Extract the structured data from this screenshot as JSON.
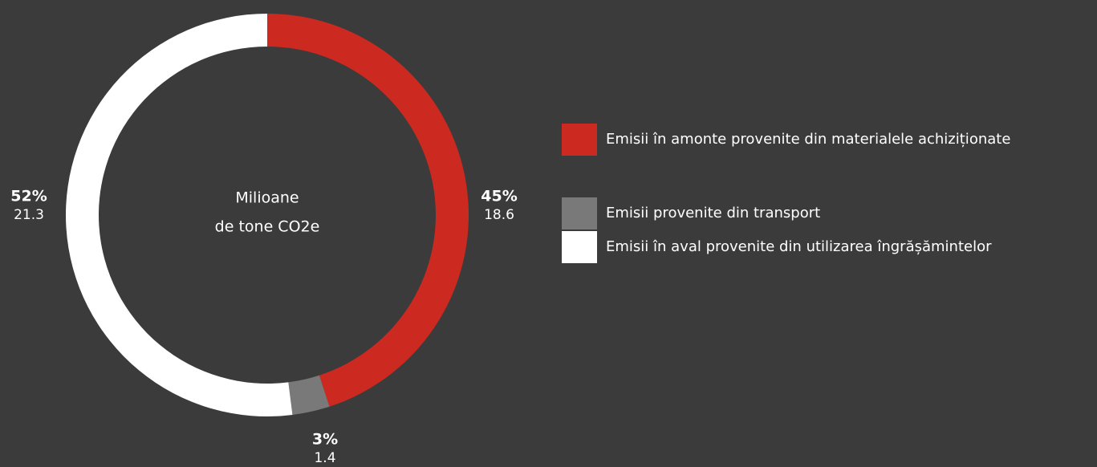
{
  "chart_data": {
    "type": "donut",
    "center_label": [
      "Milioane",
      "de tone CO2e"
    ],
    "categories": [
      "Emisii în amonte provenite din materialele achiziționate",
      "Emisii provenite din transport",
      "Emisii în aval provenite din utilizarea îngrășămintelor"
    ],
    "values": [
      45,
      3,
      52
    ],
    "value_labels": [
      "45%",
      "3%",
      "52%"
    ],
    "amounts": [
      18.6,
      1.4,
      21.3
    ],
    "colors": [
      "#cc2a20",
      "#7a7979",
      "#ffffff"
    ],
    "legend": "right"
  }
}
